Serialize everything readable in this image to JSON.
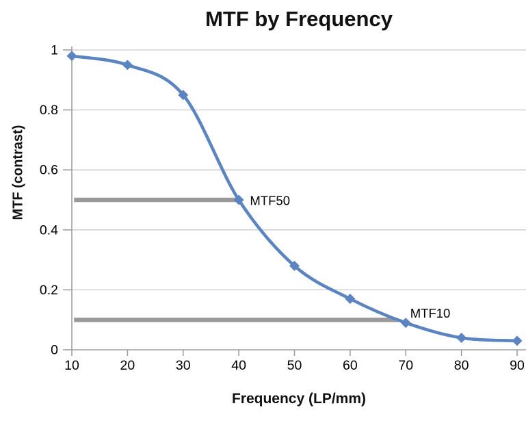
{
  "chart_data": {
    "type": "line",
    "title": "MTF by Frequency",
    "xlabel": "Frequency (LP/mm)",
    "ylabel": "MTF (contrast)",
    "x": [
      10,
      20,
      30,
      40,
      50,
      60,
      70,
      80,
      90
    ],
    "series": [
      {
        "name": "MTF",
        "values": [
          0.98,
          0.95,
          0.85,
          0.5,
          0.28,
          0.17,
          0.09,
          0.04,
          0.03
        ]
      }
    ],
    "xlim": [
      10,
      90
    ],
    "ylim": [
      0,
      1
    ],
    "xticks": {
      "values": [
        10,
        20,
        30,
        40,
        50,
        60,
        70,
        80,
        90
      ],
      "labels": [
        "10",
        "20",
        "30",
        "40",
        "50",
        "60",
        "70",
        "80",
        "90"
      ]
    },
    "yticks": {
      "values": [
        0,
        0.2,
        0.4,
        0.6,
        0.8,
        1
      ],
      "labels": [
        "0",
        "0.2",
        "0.4",
        "0.6",
        "0.8",
        "1"
      ]
    },
    "grid": "horizontal",
    "legend": false,
    "line_smooth": true,
    "marker": "diamond",
    "reference_lines": [
      {
        "y": 0.5,
        "x_start": 10.4,
        "x_end": 40,
        "label": "MTF50"
      },
      {
        "y": 0.1,
        "x_start": 10.4,
        "x_end": 68.6,
        "label": "MTF10"
      }
    ],
    "annotations": [
      {
        "label": "MTF50",
        "x": 42.0,
        "y": 0.497
      },
      {
        "label": "MTF10",
        "x": 70.8,
        "y": 0.121
      }
    ],
    "colors": {
      "line": "#5b84c0",
      "marker": "#5b84c0",
      "reference_line": "#9a9a9a",
      "gridline": "#c9c9c9",
      "axis": "#9e9e9e",
      "text": "#000000"
    }
  }
}
